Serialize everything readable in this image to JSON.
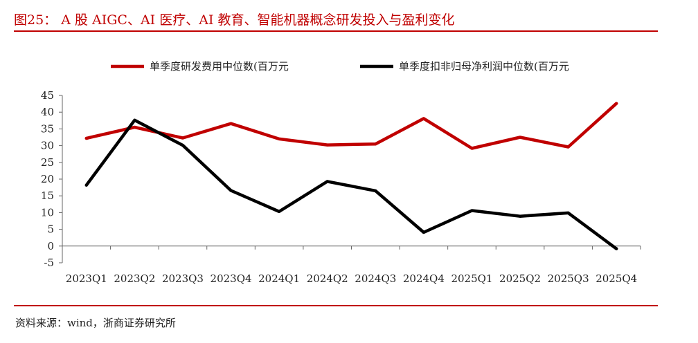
{
  "title": "图25： A 股 AIGC、AI 医疗、AI 教育、智能机器概念研发投入与盈利变化",
  "source": "资料来源：wind，浙商证券研究所",
  "colors": {
    "accent": "#c00000",
    "series_2": "#000000"
  },
  "chart_data": {
    "type": "line",
    "categories": [
      "2023Q1",
      "2023Q2",
      "2023Q3",
      "2023Q4",
      "2024Q1",
      "2024Q2",
      "2024Q3",
      "2024Q4",
      "2025Q1",
      "2025Q2",
      "2025Q3",
      "2025Q4"
    ],
    "series": [
      {
        "name": "单季度研发费用中位数(百万元",
        "color": "#c00000",
        "values": [
          32.2,
          35.5,
          32.3,
          36.6,
          32.0,
          30.2,
          30.5,
          38.1,
          29.2,
          32.5,
          29.6,
          42.6
        ]
      },
      {
        "name": "单季度扣非归母净利润中位数(百万元",
        "color": "#000000",
        "values": [
          18.2,
          37.6,
          30.1,
          16.6,
          10.3,
          19.3,
          16.5,
          4.1,
          10.6,
          8.9,
          9.9,
          -0.8
        ]
      }
    ],
    "ylim": [
      -5,
      45
    ],
    "yticks": [
      45,
      40,
      35,
      30,
      25,
      20,
      15,
      10,
      5,
      0,
      -5
    ],
    "legend": "top",
    "grid": false
  }
}
